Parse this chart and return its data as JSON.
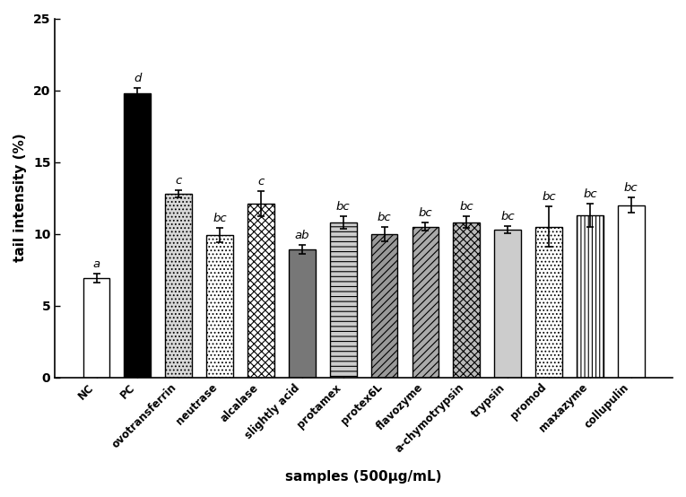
{
  "categories": [
    "NC",
    "PC",
    "ovotransferrin",
    "neutrase",
    "alcalase",
    "slightly acid",
    "protamex",
    "protex6L",
    "flavozyme",
    "a-chymotrypsin",
    "trypsin",
    "promod",
    "maxazyme",
    "collupulin"
  ],
  "values": [
    6.9,
    19.8,
    12.8,
    9.9,
    12.1,
    8.9,
    10.8,
    10.0,
    10.5,
    10.8,
    10.3,
    10.5,
    11.3,
    12.0
  ],
  "errors": [
    0.3,
    0.35,
    0.25,
    0.5,
    0.9,
    0.3,
    0.45,
    0.5,
    0.3,
    0.4,
    0.25,
    1.4,
    0.8,
    0.55
  ],
  "letters": [
    "a",
    "d",
    "c",
    "bc",
    "c",
    "ab",
    "bc",
    "bc",
    "bc",
    "bc",
    "bc",
    "bc",
    "bc",
    "bc"
  ],
  "ylabel": "tail intensity (%)",
  "xlabel": "samples (500μg/mL)",
  "ylim": [
    0,
    25
  ],
  "yticks": [
    0,
    5,
    10,
    15,
    20,
    25
  ],
  "figsize": [
    7.65,
    5.54
  ],
  "dpi": 100
}
